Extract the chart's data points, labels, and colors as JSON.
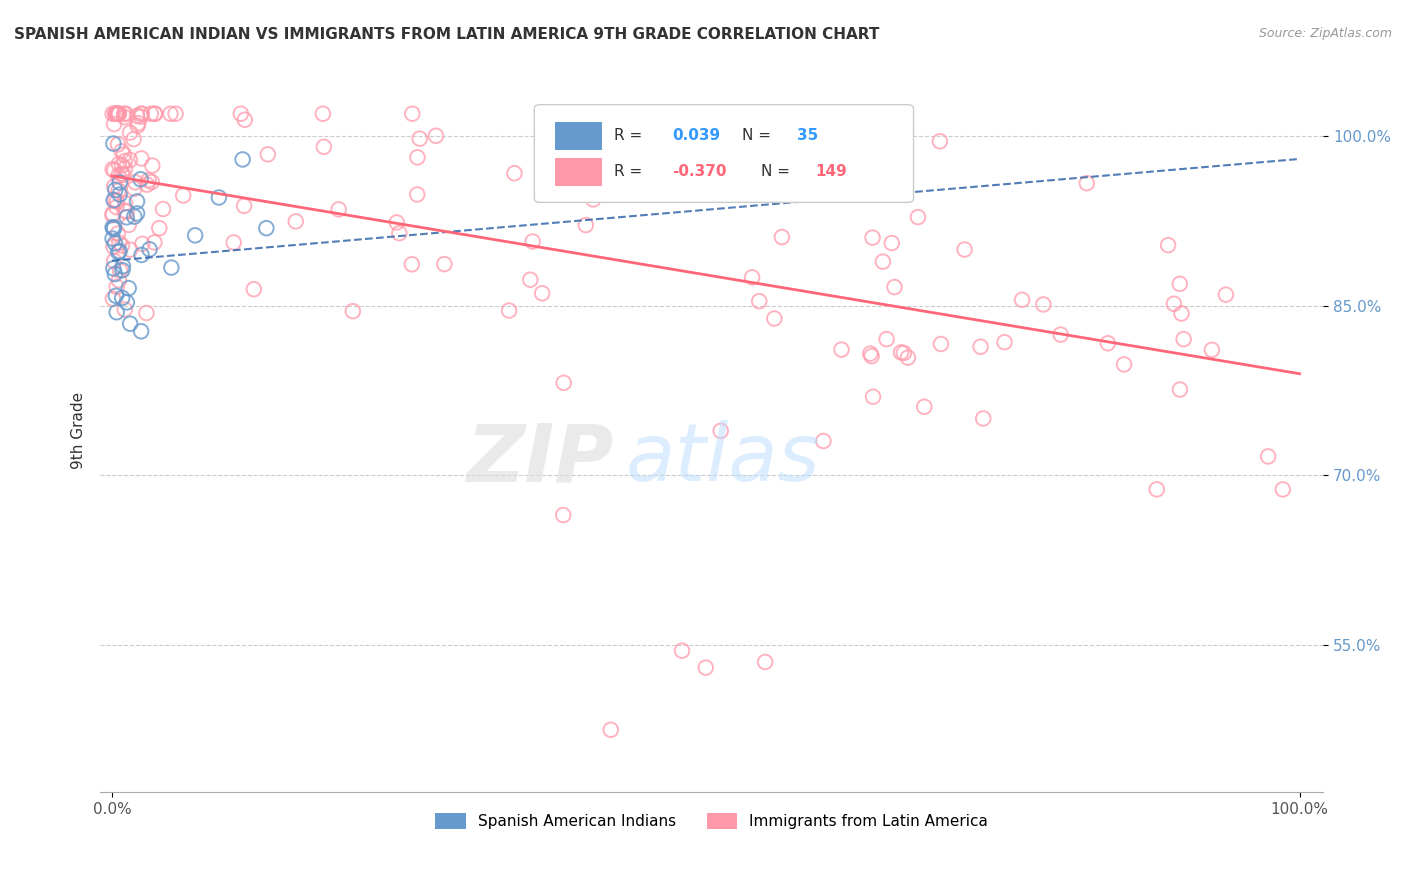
{
  "title": "SPANISH AMERICAN INDIAN VS IMMIGRANTS FROM LATIN AMERICA 9TH GRADE CORRELATION CHART",
  "source": "Source: ZipAtlas.com",
  "ylabel": "9th Grade",
  "ytick_labels": [
    "100.0%",
    "85.0%",
    "70.0%",
    "55.0%"
  ],
  "ytick_values": [
    1.0,
    0.85,
    0.7,
    0.55
  ],
  "xlim": [
    0.0,
    1.0
  ],
  "ylim": [
    0.42,
    1.06
  ],
  "legend_r1_val": "0.039",
  "legend_n1_val": "35",
  "legend_r2_val": "-0.370",
  "legend_n2_val": "149",
  "blue_color": "#6699CC",
  "pink_color": "#FF99AA",
  "blue_line_color": "#3366AA",
  "pink_line_color": "#FF6677",
  "blue_trend": [
    0.0,
    1.0,
    0.89,
    0.98
  ],
  "pink_trend": [
    0.0,
    1.0,
    0.965,
    0.79
  ],
  "background_color": "#FFFFFF"
}
